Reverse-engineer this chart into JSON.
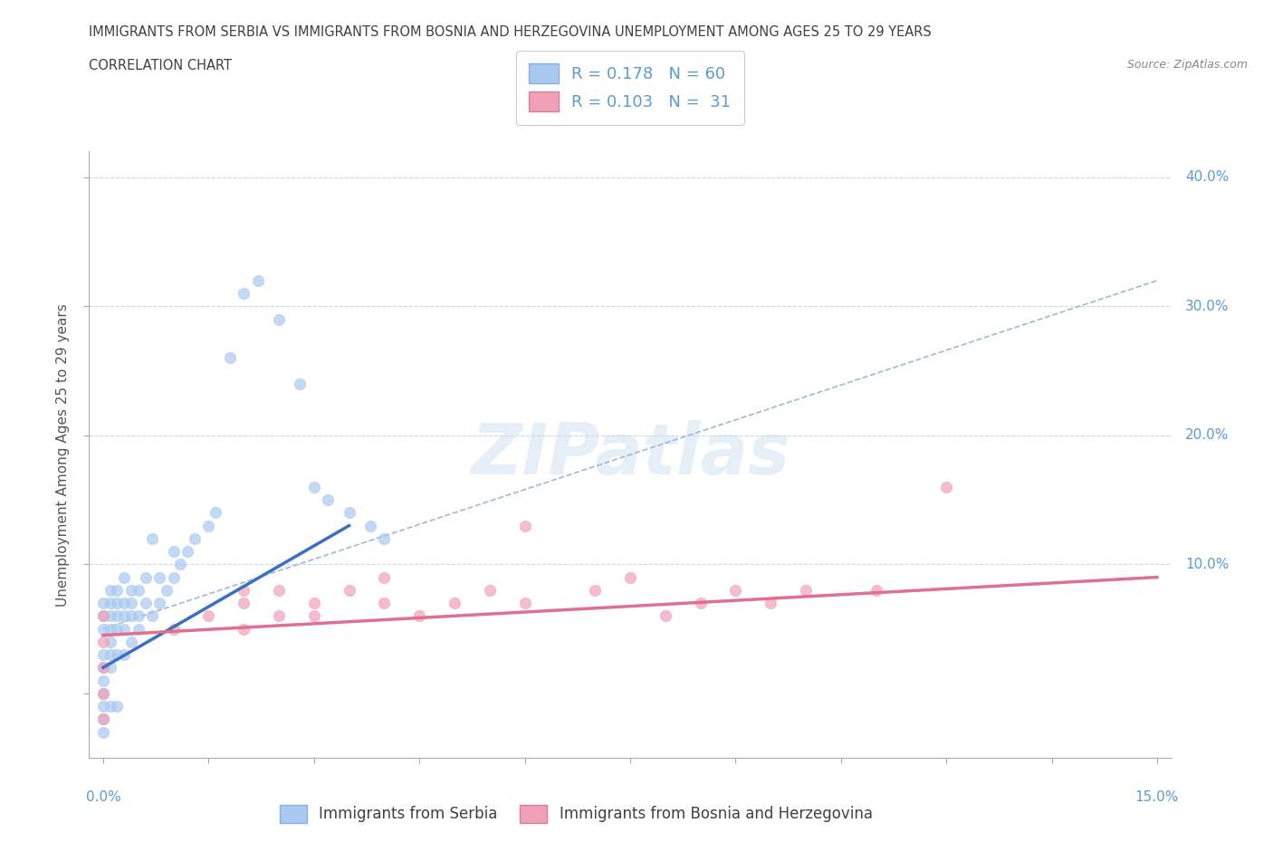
{
  "title_line1": "IMMIGRANTS FROM SERBIA VS IMMIGRANTS FROM BOSNIA AND HERZEGOVINA UNEMPLOYMENT AMONG AGES 25 TO 29 YEARS",
  "title_line2": "CORRELATION CHART",
  "source": "Source: ZipAtlas.com",
  "ylabel": "Unemployment Among Ages 25 to 29 years",
  "serbia_color": "#a8c8f0",
  "bosnia_color": "#f0a0b8",
  "serbia_trendline_color": "#3a6fc4",
  "dashed_trendline_color": "#a0b8d8",
  "bosnia_trendline_color": "#e07090",
  "serbia_R": 0.178,
  "serbia_N": 60,
  "bosnia_R": 0.103,
  "bosnia_N": 31,
  "xmin": 0.0,
  "xmax": 0.15,
  "ymin": -0.05,
  "ymax": 0.42,
  "serbia_x": [
    0.0,
    0.0,
    0.0,
    0.0,
    0.0,
    0.0,
    0.0,
    0.0,
    0.0,
    0.0,
    0.001,
    0.001,
    0.001,
    0.001,
    0.001,
    0.001,
    0.001,
    0.001,
    0.002,
    0.002,
    0.002,
    0.002,
    0.002,
    0.002,
    0.003,
    0.003,
    0.003,
    0.003,
    0.003,
    0.004,
    0.004,
    0.004,
    0.004,
    0.005,
    0.005,
    0.005,
    0.006,
    0.006,
    0.007,
    0.007,
    0.008,
    0.008,
    0.009,
    0.01,
    0.01,
    0.011,
    0.012,
    0.013,
    0.015,
    0.016,
    0.018,
    0.02,
    0.022,
    0.025,
    0.028,
    0.03,
    0.032,
    0.035,
    0.038,
    0.04
  ],
  "serbia_y": [
    0.0,
    0.01,
    0.02,
    0.03,
    0.05,
    0.06,
    0.07,
    -0.01,
    -0.02,
    -0.03,
    0.04,
    0.05,
    0.06,
    0.07,
    0.08,
    -0.01,
    0.02,
    0.03,
    0.05,
    0.06,
    0.07,
    0.08,
    -0.01,
    0.03,
    0.05,
    0.06,
    0.07,
    0.09,
    0.03,
    0.06,
    0.07,
    0.08,
    0.04,
    0.06,
    0.08,
    0.05,
    0.07,
    0.09,
    0.06,
    0.12,
    0.07,
    0.09,
    0.08,
    0.09,
    0.11,
    0.1,
    0.11,
    0.12,
    0.13,
    0.14,
    0.26,
    0.31,
    0.32,
    0.29,
    0.24,
    0.16,
    0.15,
    0.14,
    0.13,
    0.12
  ],
  "bosnia_x": [
    0.0,
    0.0,
    0.0,
    0.0,
    0.0,
    0.01,
    0.015,
    0.02,
    0.02,
    0.02,
    0.025,
    0.025,
    0.03,
    0.03,
    0.035,
    0.04,
    0.04,
    0.045,
    0.05,
    0.055,
    0.06,
    0.06,
    0.07,
    0.075,
    0.08,
    0.085,
    0.09,
    0.095,
    0.1,
    0.11,
    0.12
  ],
  "bosnia_y": [
    0.0,
    0.02,
    0.04,
    0.06,
    -0.02,
    0.05,
    0.06,
    0.05,
    0.07,
    0.08,
    0.06,
    0.08,
    0.06,
    0.07,
    0.08,
    0.07,
    0.09,
    0.06,
    0.07,
    0.08,
    0.07,
    0.13,
    0.08,
    0.09,
    0.06,
    0.07,
    0.08,
    0.07,
    0.08,
    0.08,
    0.16
  ],
  "background_color": "#ffffff",
  "watermark": "ZIPatlas",
  "tick_color": "#5b9bd5",
  "title_color": "#404040"
}
